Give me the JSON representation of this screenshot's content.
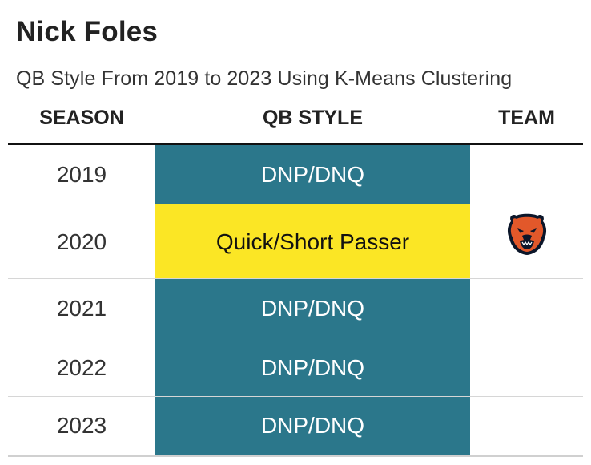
{
  "title": "Nick Foles",
  "subtitle": "QB Style From 2019 to 2023 Using K-Means Clustering",
  "headers": {
    "season": "SEASON",
    "style": "QB STYLE",
    "team": "TEAM"
  },
  "rows": [
    {
      "season": "2019",
      "style": "DNP/DNQ",
      "style_bg": "#2b778b",
      "style_fg": "#ffffff",
      "team_icon": ""
    },
    {
      "season": "2020",
      "style": "Quick/Short Passer",
      "style_bg": "#fbe625",
      "style_fg": "#111111",
      "team_icon": "bears-logo-icon"
    },
    {
      "season": "2021",
      "style": "DNP/DNQ",
      "style_bg": "#2b778b",
      "style_fg": "#ffffff",
      "team_icon": ""
    },
    {
      "season": "2022",
      "style": "DNP/DNQ",
      "style_bg": "#2b778b",
      "style_fg": "#ffffff",
      "team_icon": ""
    },
    {
      "season": "2023",
      "style": "DNP/DNQ",
      "style_bg": "#2b778b",
      "style_fg": "#ffffff",
      "team_icon": ""
    }
  ]
}
